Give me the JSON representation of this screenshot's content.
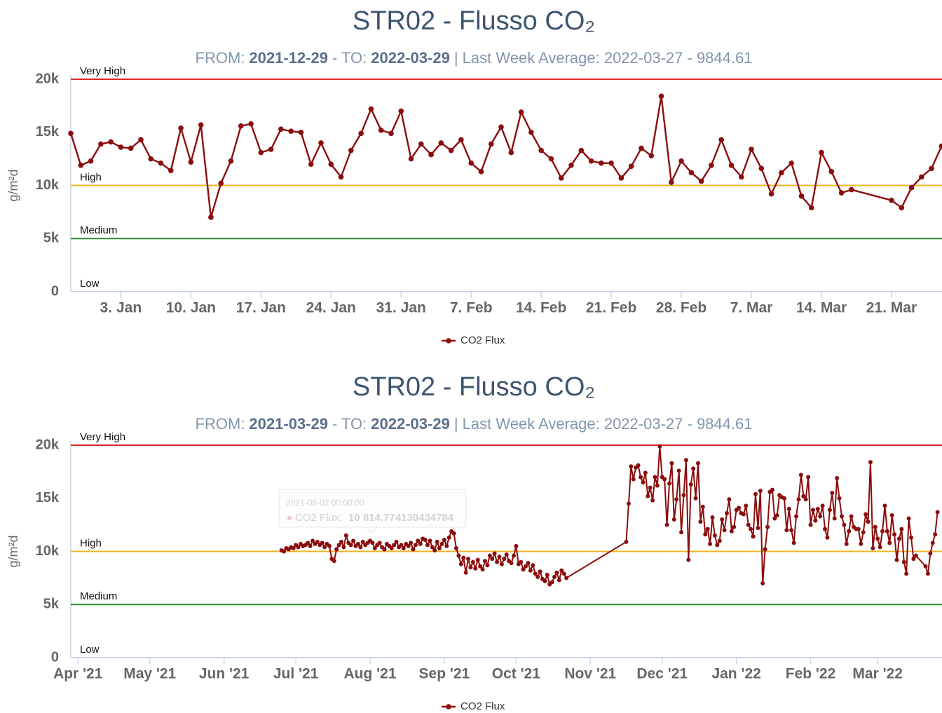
{
  "chart_data": [
    {
      "type": "line",
      "title": "STR02 - Flusso CO₂",
      "subtitle": [
        {
          "text": "FROM:"
        },
        {
          "text": "2021-12-29",
          "bold": true
        },
        {
          "text": "- TO:"
        },
        {
          "text": "2022-03-29",
          "bold": true
        },
        {
          "text": "| Last Week Average: 2022-03-27 - 9844.61"
        }
      ],
      "y_label": "g/m²d",
      "ylim": [
        0,
        20000
      ],
      "yticks": [
        0,
        {
          "value": 5000,
          "label": "5k"
        },
        {
          "value": 10000,
          "label": "10k"
        },
        {
          "value": 15000,
          "label": "15k"
        },
        {
          "value": 20000,
          "label": "20k"
        }
      ],
      "xlim": [
        "2021-12-29",
        "2022-03-29"
      ],
      "xticks": [
        {
          "value": "2022-01-03",
          "label": "3. Jan"
        },
        {
          "value": "2022-01-10",
          "label": "10. Jan"
        },
        {
          "value": "2022-01-17",
          "label": "17. Jan"
        },
        {
          "value": "2022-01-24",
          "label": "24. Jan"
        },
        {
          "value": "2022-01-31",
          "label": "31. Jan"
        },
        {
          "value": "2022-02-07",
          "label": "7. Feb"
        },
        {
          "value": "2022-02-14",
          "label": "14. Feb"
        },
        {
          "value": "2022-02-21",
          "label": "21. Feb"
        },
        {
          "value": "2022-02-28",
          "label": "28. Feb"
        },
        {
          "value": "2022-03-07",
          "label": "7. Mar"
        },
        {
          "value": "2022-03-14",
          "label": "14. Mar"
        },
        {
          "value": "2022-03-21",
          "label": "21. Mar"
        }
      ],
      "plot_lines": [
        {
          "label": "Very High",
          "value": 20000,
          "color": "#e0262b"
        },
        {
          "label": "High",
          "value": 10000,
          "color": "#f0b323"
        },
        {
          "label": "Medium",
          "value": 5000,
          "color": "#2e8b2e"
        },
        {
          "label": "Low",
          "value": 0
        }
      ],
      "legend": "bottom",
      "x": [
        "2021-12-29",
        "2021-12-30",
        "2021-12-31",
        "2022-01-01",
        "2022-01-02",
        "2022-01-03",
        "2022-01-04",
        "2022-01-05",
        "2022-01-06",
        "2022-01-07",
        "2022-01-08",
        "2022-01-09",
        "2022-01-10",
        "2022-01-11",
        "2022-01-12",
        "2022-01-13",
        "2022-01-14",
        "2022-01-15",
        "2022-01-16",
        "2022-01-17",
        "2022-01-18",
        "2022-01-19",
        "2022-01-20",
        "2022-01-21",
        "2022-01-22",
        "2022-01-23",
        "2022-01-24",
        "2022-01-25",
        "2022-01-26",
        "2022-01-27",
        "2022-01-28",
        "2022-01-29",
        "2022-01-30",
        "2022-01-31",
        "2022-02-01",
        "2022-02-02",
        "2022-02-03",
        "2022-02-04",
        "2022-02-05",
        "2022-02-06",
        "2022-02-07",
        "2022-02-08",
        "2022-02-09",
        "2022-02-10",
        "2022-02-11",
        "2022-02-12",
        "2022-02-13",
        "2022-02-14",
        "2022-02-15",
        "2022-02-16",
        "2022-02-17",
        "2022-02-18",
        "2022-02-19",
        "2022-02-20",
        "2022-02-21",
        "2022-02-22",
        "2022-02-23",
        "2022-02-24",
        "2022-02-25",
        "2022-02-26",
        "2022-02-27",
        "2022-02-28",
        "2022-03-01",
        "2022-03-02",
        "2022-03-03",
        "2022-03-04",
        "2022-03-05",
        "2022-03-06",
        "2022-03-07",
        "2022-03-08",
        "2022-03-09",
        "2022-03-10",
        "2022-03-11",
        "2022-03-12",
        "2022-03-13",
        "2022-03-14",
        "2022-03-15",
        "2022-03-16",
        "2022-03-17",
        "2022-03-21",
        "2022-03-22",
        "2022-03-23",
        "2022-03-24",
        "2022-03-25",
        "2022-03-26"
      ],
      "series": [
        {
          "name": "CO2 Flux",
          "color": "#8b0d0d",
          "values": [
            14900,
            11900,
            12300,
            13900,
            14100,
            13600,
            13500,
            14300,
            12500,
            12100,
            11400,
            15400,
            12200,
            15700,
            7000,
            10200,
            12300,
            15600,
            15800,
            13100,
            13400,
            15300,
            15100,
            15000,
            12000,
            14000,
            12000,
            10800,
            13300,
            14900,
            17200,
            15200,
            14900,
            17000,
            12500,
            13900,
            12900,
            14000,
            13300,
            14300,
            12100,
            11300,
            13900,
            15500,
            13100,
            16900,
            15000,
            13300,
            12500,
            10700,
            11900,
            13300,
            12300,
            12100,
            12100,
            10700,
            11800,
            13500,
            12800,
            18400,
            10300,
            12300,
            11200,
            10400,
            11900,
            14300,
            11900,
            10800,
            13400,
            11600,
            9200,
            11200,
            12100,
            9000,
            7900,
            13100,
            11300,
            9300,
            9600,
            8600,
            7900,
            9800,
            10800,
            11600,
            13700
          ]
        }
      ]
    },
    {
      "type": "line",
      "title": "STR02 - Flusso CO₂",
      "subtitle": [
        {
          "text": "FROM:"
        },
        {
          "text": "2021-03-29",
          "bold": true
        },
        {
          "text": "- TO:"
        },
        {
          "text": "2022-03-29",
          "bold": true
        },
        {
          "text": "| Last Week Average: 2022-03-27 - 9844.61"
        }
      ],
      "y_label": "g/m²d",
      "ylim": [
        0,
        20000
      ],
      "yticks": [
        0,
        {
          "value": 5000,
          "label": "5k"
        },
        {
          "value": 10000,
          "label": "10k"
        },
        {
          "value": 15000,
          "label": "15k"
        },
        {
          "value": 20000,
          "label": "20k"
        }
      ],
      "xlim": [
        "2021-03-29",
        "2022-03-29"
      ],
      "xticks": [
        {
          "value": "2021-04-01",
          "label": "Apr '21"
        },
        {
          "value": "2021-05-01",
          "label": "May '21"
        },
        {
          "value": "2021-06-01",
          "label": "Jun '21"
        },
        {
          "value": "2021-07-01",
          "label": "Jul '21"
        },
        {
          "value": "2021-08-01",
          "label": "Aug '21"
        },
        {
          "value": "2021-09-01",
          "label": "Sep '21"
        },
        {
          "value": "2021-10-01",
          "label": "Oct '21"
        },
        {
          "value": "2021-11-01",
          "label": "Nov '21"
        },
        {
          "value": "2021-12-01",
          "label": "Dec '21"
        },
        {
          "value": "2022-01-01",
          "label": "Jan '22"
        },
        {
          "value": "2022-02-01",
          "label": "Feb '22"
        },
        {
          "value": "2022-03-01",
          "label": "Mar '22"
        }
      ],
      "plot_lines": [
        {
          "label": "Very High",
          "value": 20000,
          "color": "#e0262b"
        },
        {
          "label": "High",
          "value": 10000,
          "color": "#f0b323"
        },
        {
          "label": "Medium",
          "value": 5000,
          "color": "#2e8b2e"
        },
        {
          "label": "Low",
          "value": 0
        }
      ],
      "legend": "bottom",
      "tooltip": {
        "title": "2021-08-02 00:00:00",
        "label": "CO2 Flux:",
        "value": "10 814.774130434784"
      },
      "x": [
        "2021-06-25",
        "2021-06-26",
        "2021-06-27",
        "2021-06-28",
        "2021-06-29",
        "2021-06-30",
        "2021-07-01",
        "2021-07-02",
        "2021-07-03",
        "2021-07-04",
        "2021-07-05",
        "2021-07-06",
        "2021-07-07",
        "2021-07-08",
        "2021-07-09",
        "2021-07-10",
        "2021-07-11",
        "2021-07-12",
        "2021-07-13",
        "2021-07-14",
        "2021-07-15",
        "2021-07-16",
        "2021-07-17",
        "2021-07-18",
        "2021-07-19",
        "2021-07-20",
        "2021-07-21",
        "2021-07-22",
        "2021-07-23",
        "2021-07-24",
        "2021-07-25",
        "2021-07-26",
        "2021-07-27",
        "2021-07-28",
        "2021-07-29",
        "2021-07-30",
        "2021-07-31",
        "2021-08-01",
        "2021-08-02",
        "2021-08-03",
        "2021-08-04",
        "2021-08-05",
        "2021-08-06",
        "2021-08-07",
        "2021-08-08",
        "2021-08-09",
        "2021-08-10",
        "2021-08-11",
        "2021-08-12",
        "2021-08-13",
        "2021-08-14",
        "2021-08-15",
        "2021-08-16",
        "2021-08-17",
        "2021-08-18",
        "2021-08-19",
        "2021-08-20",
        "2021-08-21",
        "2021-08-22",
        "2021-08-23",
        "2021-08-24",
        "2021-08-25",
        "2021-08-26",
        "2021-08-27",
        "2021-08-28",
        "2021-08-29",
        "2021-08-30",
        "2021-08-31",
        "2021-09-01",
        "2021-09-02",
        "2021-09-03",
        "2021-09-04",
        "2021-09-05",
        "2021-09-06",
        "2021-09-07",
        "2021-09-08",
        "2021-09-09",
        "2021-09-10",
        "2021-09-11",
        "2021-09-12",
        "2021-09-13",
        "2021-09-14",
        "2021-09-15",
        "2021-09-16",
        "2021-09-17",
        "2021-09-18",
        "2021-09-19",
        "2021-09-20",
        "2021-09-21",
        "2021-09-22",
        "2021-09-23",
        "2021-09-24",
        "2021-09-25",
        "2021-09-26",
        "2021-09-27",
        "2021-09-28",
        "2021-09-29",
        "2021-09-30",
        "2021-10-01",
        "2021-10-02",
        "2021-10-03",
        "2021-10-04",
        "2021-10-05",
        "2021-10-06",
        "2021-10-07",
        "2021-10-08",
        "2021-10-09",
        "2021-10-10",
        "2021-10-11",
        "2021-10-12",
        "2021-10-13",
        "2021-10-14",
        "2021-10-15",
        "2021-10-16",
        "2021-10-17",
        "2021-10-18",
        "2021-10-19",
        "2021-10-20",
        "2021-10-21",
        "2021-10-22",
        "2021-11-16",
        "2021-11-17",
        "2021-11-18",
        "2021-11-19",
        "2021-11-20",
        "2021-11-21",
        "2021-11-22",
        "2021-11-23",
        "2021-11-24",
        "2021-11-25",
        "2021-11-26",
        "2021-11-27",
        "2021-11-28",
        "2021-11-29",
        "2021-11-30",
        "2021-12-01",
        "2021-12-02",
        "2021-12-03",
        "2021-12-04",
        "2021-12-05",
        "2021-12-06",
        "2021-12-07",
        "2021-12-08",
        "2021-12-09",
        "2021-12-10",
        "2021-12-11",
        "2021-12-12",
        "2021-12-13",
        "2021-12-14",
        "2021-12-15",
        "2021-12-16",
        "2021-12-17",
        "2021-12-18",
        "2021-12-19",
        "2021-12-20",
        "2021-12-21",
        "2021-12-22",
        "2021-12-23",
        "2021-12-24",
        "2021-12-25",
        "2021-12-26",
        "2021-12-27",
        "2021-12-28",
        "2021-12-29",
        "2021-12-30",
        "2021-12-31",
        "2022-01-01",
        "2022-01-02",
        "2022-01-03",
        "2022-01-04",
        "2022-01-05",
        "2022-01-06",
        "2022-01-07",
        "2022-01-08",
        "2022-01-09",
        "2022-01-10",
        "2022-01-11",
        "2022-01-12",
        "2022-01-13",
        "2022-01-14",
        "2022-01-15",
        "2022-01-16",
        "2022-01-17",
        "2022-01-18",
        "2022-01-19",
        "2022-01-20",
        "2022-01-21",
        "2022-01-22",
        "2022-01-23",
        "2022-01-24",
        "2022-01-25",
        "2022-01-26",
        "2022-01-27",
        "2022-01-28",
        "2022-01-29",
        "2022-01-30",
        "2022-01-31",
        "2022-02-01",
        "2022-02-02",
        "2022-02-03",
        "2022-02-04",
        "2022-02-05",
        "2022-02-06",
        "2022-02-07",
        "2022-02-08",
        "2022-02-09",
        "2022-02-10",
        "2022-02-11",
        "2022-02-12",
        "2022-02-13",
        "2022-02-14",
        "2022-02-15",
        "2022-02-16",
        "2022-02-17",
        "2022-02-18",
        "2022-02-19",
        "2022-02-20",
        "2022-02-21",
        "2022-02-22",
        "2022-02-23",
        "2022-02-24",
        "2022-02-25",
        "2022-02-26",
        "2022-02-27",
        "2022-02-28",
        "2022-03-01",
        "2022-03-02",
        "2022-03-03",
        "2022-03-04",
        "2022-03-05",
        "2022-03-06",
        "2022-03-07",
        "2022-03-08",
        "2022-03-09",
        "2022-03-10",
        "2022-03-11",
        "2022-03-12",
        "2022-03-13",
        "2022-03-14",
        "2022-03-15",
        "2022-03-16",
        "2022-03-17",
        "2022-03-21",
        "2022-03-22",
        "2022-03-23",
        "2022-03-24",
        "2022-03-25",
        "2022-03-26"
      ],
      "series": [
        {
          "name": "CO2 Flux",
          "color": "#8b0d0d",
          "values": [
            10100,
            10000,
            10300,
            10200,
            10400,
            10300,
            10600,
            10400,
            10700,
            10500,
            10600,
            10800,
            10500,
            11000,
            10700,
            10900,
            10600,
            10800,
            10400,
            10700,
            10500,
            9300,
            9100,
            10200,
            10600,
            10900,
            10400,
            11500,
            10800,
            10600,
            11000,
            10500,
            10700,
            10400,
            10900,
            10600,
            10800,
            11000,
            10814.77,
            10300,
            10600,
            10800,
            10400,
            10200,
            10700,
            10500,
            10300,
            10600,
            10900,
            10400,
            10600,
            10300,
            10700,
            10500,
            10800,
            10200,
            10600,
            11000,
            10700,
            11200,
            11100,
            10600,
            11000,
            10400,
            10100,
            10900,
            10300,
            10700,
            11100,
            10500,
            11300,
            11900,
            11700,
            10300,
            9600,
            8800,
            9400,
            8000,
            9300,
            8500,
            9000,
            8400,
            9200,
            8600,
            8300,
            9100,
            8700,
            9600,
            9300,
            9800,
            9000,
            9500,
            8800,
            9300,
            9700,
            9100,
            8900,
            9600,
            10500,
            8800,
            9000,
            8300,
            8600,
            8900,
            8200,
            8700,
            7900,
            7600,
            8100,
            7400,
            7200,
            7800,
            6900,
            7100,
            7600,
            8000,
            7300,
            8200,
            7900,
            7500,
            10900,
            14500,
            18000,
            16800,
            17900,
            18100,
            17000,
            16500,
            17400,
            15200,
            16000,
            14800,
            17000,
            16200,
            19900,
            17000,
            16800,
            12500,
            16400,
            18300,
            13000,
            14900,
            17600,
            11800,
            15300,
            18600,
            9200,
            16300,
            17800,
            15000,
            18300,
            12800,
            14200,
            11600,
            12100,
            10700,
            13200,
            11500,
            10600,
            11000,
            13000,
            12000,
            13600,
            14900,
            11900,
            12300,
            13900,
            14100,
            13600,
            13500,
            14300,
            12500,
            12100,
            11400,
            15400,
            12200,
            15700,
            7000,
            10200,
            12300,
            15600,
            15800,
            13100,
            13400,
            15300,
            15100,
            15000,
            12000,
            14000,
            12000,
            10800,
            13300,
            14900,
            17200,
            15200,
            14900,
            17000,
            12500,
            13900,
            12900,
            14000,
            13300,
            14300,
            12100,
            11300,
            13900,
            15500,
            13100,
            16900,
            15000,
            13300,
            12500,
            10700,
            11900,
            13300,
            12300,
            12100,
            12100,
            10700,
            11800,
            13500,
            12800,
            18400,
            10300,
            12300,
            11200,
            10400,
            11900,
            14300,
            11900,
            10800,
            13400,
            11600,
            9200,
            11200,
            12100,
            9000,
            7900,
            13100,
            11300,
            9300,
            9600,
            8600,
            7900,
            9800,
            10800,
            11600,
            13700
          ]
        }
      ]
    }
  ]
}
